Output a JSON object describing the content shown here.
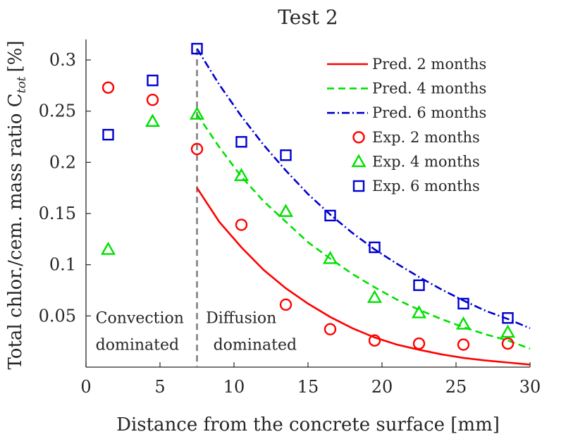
{
  "chart_data": {
    "type": "line",
    "title": "Test 2",
    "xlabel": "Distance from the concrete surface [mm]",
    "ylabel": "Total chlor./cem. mass ratio C",
    "ylabel_subscript": "tot",
    "ylabel_unit": "[%]",
    "xlim": [
      0,
      30
    ],
    "ylim": [
      0,
      0.32
    ],
    "x_ticks": [
      0,
      5,
      10,
      15,
      20,
      25,
      30
    ],
    "x_tick_labels": [
      "0",
      "5",
      "10",
      "15",
      "20",
      "25",
      "30"
    ],
    "y_ticks": [
      0.05,
      0.1,
      0.15,
      0.2,
      0.25,
      0.3
    ],
    "y_tick_labels": [
      "0.05",
      "0.1",
      "0.15",
      "0.2",
      "0.25",
      "0.3"
    ],
    "grid": false,
    "legend_position": "top-right",
    "divider_x": 7.5,
    "region_labels": {
      "left_line1": "Convection",
      "left_line2": "dominated",
      "right_line1": "Diffusion",
      "right_line2": "dominated"
    },
    "series": [
      {
        "name": "Pred. 2 months",
        "kind": "line",
        "style": "solid",
        "color": "#ff0000",
        "x": [
          7.5,
          9,
          10.5,
          12,
          13.5,
          15,
          16.5,
          18,
          19.5,
          21,
          22.5,
          24,
          25.5,
          27,
          28.5,
          30
        ],
        "y": [
          0.175,
          0.142,
          0.117,
          0.095,
          0.077,
          0.062,
          0.049,
          0.038,
          0.029,
          0.022,
          0.017,
          0.0125,
          0.009,
          0.0065,
          0.0045,
          0.0025
        ]
      },
      {
        "name": "Pred. 4 months",
        "kind": "line",
        "style": "dashed",
        "color": "#00e000",
        "x": [
          7.5,
          9,
          10.5,
          12,
          13.5,
          15,
          16.5,
          18,
          19.5,
          21,
          22.5,
          24,
          25.5,
          27,
          28.5,
          30
        ],
        "y": [
          0.247,
          0.215,
          0.186,
          0.162,
          0.142,
          0.122,
          0.106,
          0.091,
          0.078,
          0.066,
          0.056,
          0.047,
          0.039,
          0.032,
          0.026,
          0.018
        ]
      },
      {
        "name": "Pred. 6 months",
        "kind": "line",
        "style": "dashdot",
        "color": "#0000d0",
        "x": [
          7.5,
          9,
          10.5,
          12,
          13.5,
          15,
          16.5,
          18,
          19.5,
          21,
          22.5,
          24,
          25.5,
          27,
          28.5,
          30
        ],
        "y": [
          0.311,
          0.276,
          0.245,
          0.217,
          0.192,
          0.169,
          0.149,
          0.131,
          0.115,
          0.101,
          0.088,
          0.076,
          0.065,
          0.055,
          0.047,
          0.038
        ]
      },
      {
        "name": "Exp. 2 months",
        "kind": "marker",
        "marker": "circle",
        "color": "#ff0000",
        "x": [
          1.5,
          4.5,
          7.5,
          10.5,
          13.5,
          16.5,
          19.5,
          22.5,
          25.5,
          28.5
        ],
        "y": [
          0.273,
          0.261,
          0.213,
          0.139,
          0.061,
          0.037,
          0.026,
          0.023,
          0.022,
          0.023
        ]
      },
      {
        "name": "Exp. 4 months",
        "kind": "marker",
        "marker": "triangle",
        "color": "#00e000",
        "x": [
          1.5,
          4.5,
          7.5,
          10.5,
          13.5,
          16.5,
          19.5,
          22.5,
          25.5,
          28.5
        ],
        "y": [
          0.115,
          0.24,
          0.247,
          0.187,
          0.152,
          0.106,
          0.068,
          0.053,
          0.042,
          0.034
        ]
      },
      {
        "name": "Exp. 6 months",
        "kind": "marker",
        "marker": "square",
        "color": "#0000d0",
        "x": [
          1.5,
          4.5,
          7.5,
          10.5,
          13.5,
          16.5,
          19.5,
          22.5,
          25.5,
          28.5
        ],
        "y": [
          0.227,
          0.28,
          0.311,
          0.22,
          0.207,
          0.148,
          0.117,
          0.08,
          0.062,
          0.048
        ]
      }
    ]
  }
}
